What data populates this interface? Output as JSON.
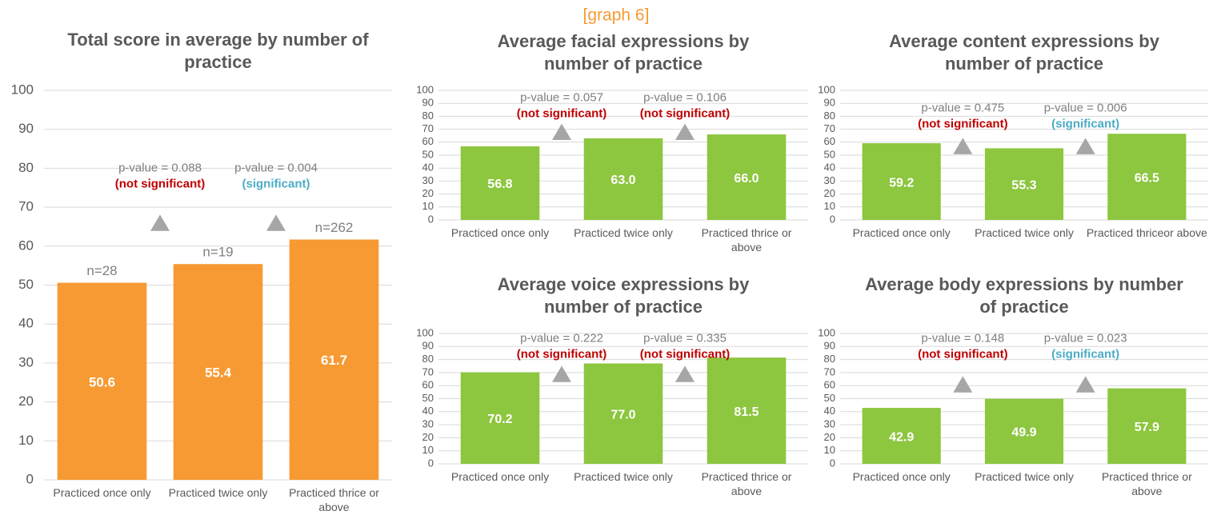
{
  "caption": "[graph 6]",
  "chart_data": [
    {
      "type": "bar",
      "title": "Total score in average by number of practice",
      "categories": [
        "Practiced once only",
        "Practiced twice only",
        "Practiced thrice or above"
      ],
      "values": [
        50.6,
        55.4,
        61.7
      ],
      "color": "#f79a33",
      "n_labels": [
        "n=28",
        "n=19",
        "n=262"
      ],
      "comparisons": [
        {
          "label": "p-value = 0.088",
          "result": "(not significant)",
          "result_color": "#c00000"
        },
        {
          "label": "p-value = 0.004",
          "result": "(significant)",
          "result_color": "#4bacc6"
        }
      ],
      "ylim": [
        0,
        100
      ],
      "yticks": [
        0,
        10,
        20,
        30,
        40,
        50,
        60,
        70,
        80,
        90,
        100
      ],
      "grid": true
    },
    {
      "type": "bar",
      "title": "Average facial expressions by number of practice",
      "categories": [
        "Practiced once only",
        "Practiced twice only",
        "Practiced thrice or above"
      ],
      "values": [
        56.8,
        63.0,
        66.0
      ],
      "value_labels": [
        "56.8",
        "63.0",
        "66.0"
      ],
      "color": "#8dc63f",
      "comparisons": [
        {
          "label": "p-value = 0.057",
          "result": "(not significant)",
          "result_color": "#c00000"
        },
        {
          "label": "p-value = 0.106",
          "result": "(not significant)",
          "result_color": "#c00000"
        }
      ],
      "ylim": [
        0,
        100
      ],
      "yticks": [
        0,
        10,
        20,
        30,
        40,
        50,
        60,
        70,
        80,
        90,
        100
      ],
      "grid": true
    },
    {
      "type": "bar",
      "title": "Average content expressions by number of practice",
      "categories": [
        "Practiced once only",
        "Practiced twice only",
        "Practiced thriceor above"
      ],
      "values": [
        59.2,
        55.3,
        66.5
      ],
      "color": "#8dc63f",
      "comparisons": [
        {
          "label": "p-value = 0.475",
          "result": "(not significant)",
          "result_color": "#c00000"
        },
        {
          "label": "p-value = 0.006",
          "result": "(significant)",
          "result_color": "#4bacc6"
        }
      ],
      "ylim": [
        0,
        100
      ],
      "yticks": [
        0,
        10,
        20,
        30,
        40,
        50,
        60,
        70,
        80,
        90,
        100
      ],
      "grid": true
    },
    {
      "type": "bar",
      "title": "Average voice expressions by number of practice",
      "categories": [
        "Practiced once only",
        "Practiced twice only",
        "Practiced thrice or above"
      ],
      "values": [
        70.2,
        77.0,
        81.5
      ],
      "value_labels": [
        "70.2",
        "77.0",
        "81.5"
      ],
      "color": "#8dc63f",
      "comparisons": [
        {
          "label": "p-value = 0.222",
          "result": "(not significant)",
          "result_color": "#c00000"
        },
        {
          "label": "p-value = 0.335",
          "result": "(not significant)",
          "result_color": "#c00000"
        }
      ],
      "ylim": [
        0,
        100
      ],
      "yticks": [
        0,
        10,
        20,
        30,
        40,
        50,
        60,
        70,
        80,
        90,
        100
      ],
      "grid": true
    },
    {
      "type": "bar",
      "title": "Average body expressions by number of practice",
      "categories": [
        "Practiced once only",
        "Practiced twice only",
        "Practiced thrice or above"
      ],
      "values": [
        42.9,
        49.9,
        57.9
      ],
      "color": "#8dc63f",
      "comparisons": [
        {
          "label": "p-value = 0.148",
          "result": "(not significant)",
          "result_color": "#c00000"
        },
        {
          "label": "p-value = 0.023",
          "result": "(significant)",
          "result_color": "#4bacc6"
        }
      ],
      "ylim": [
        0,
        100
      ],
      "yticks": [
        0,
        10,
        20,
        30,
        40,
        50,
        60,
        70,
        80,
        90,
        100
      ],
      "grid": true
    }
  ]
}
